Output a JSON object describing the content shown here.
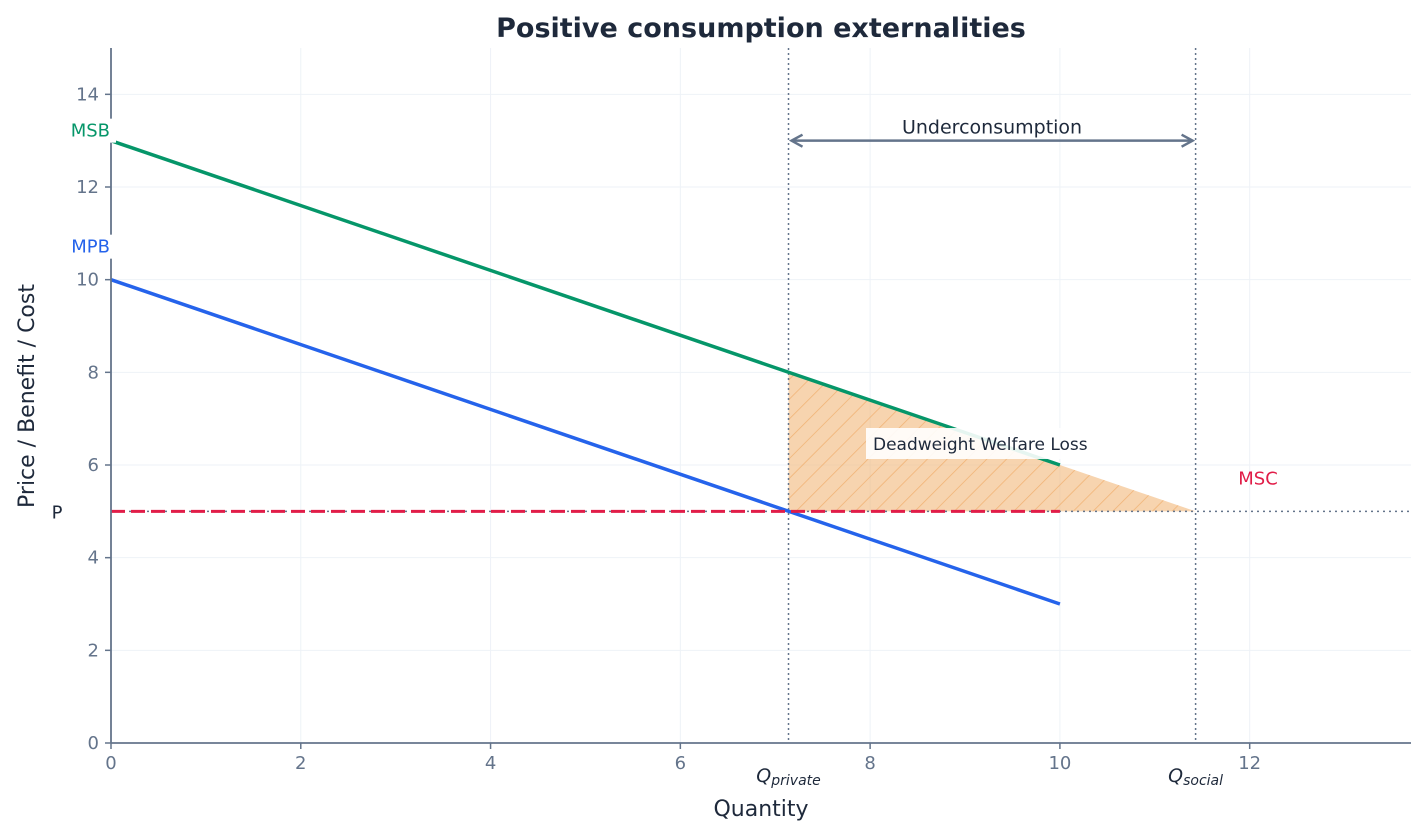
{
  "chart_data": {
    "type": "line",
    "title": "Positive consumption externalities",
    "xlabel": "Quantity",
    "ylabel": "Price / Benefit / Cost",
    "xlim": [
      0,
      13.7
    ],
    "ylim": [
      0,
      15
    ],
    "x_ticks": [
      0,
      2,
      4,
      6,
      8,
      10,
      12
    ],
    "y_ticks": [
      0,
      2,
      4,
      6,
      8,
      10,
      12,
      14
    ],
    "grid": true,
    "series": [
      {
        "name": "MSB",
        "color": "#059669",
        "x": [
          0,
          10
        ],
        "y": [
          13,
          6
        ],
        "style": "solid"
      },
      {
        "name": "MPB",
        "color": "#2563eb",
        "x": [
          0,
          10
        ],
        "y": [
          10,
          3
        ],
        "style": "solid"
      },
      {
        "name": "MSC",
        "color": "#e11d48",
        "x": [
          0,
          10
        ],
        "y": [
          5,
          5
        ],
        "style": "dashed"
      }
    ],
    "price_level": {
      "label": "P",
      "value": 5
    },
    "q_private": {
      "label": "Q",
      "sub": "private",
      "value": 7.14
    },
    "q_social": {
      "label": "Q",
      "sub": "social",
      "value": 11.43
    },
    "deadweight_loss": {
      "label": "Deadweight Welfare Loss",
      "color": "#f2b77a",
      "vertices": [
        [
          7.14,
          8
        ],
        [
          11.43,
          5
        ],
        [
          7.14,
          5
        ]
      ]
    },
    "underconsumption": {
      "label": "Underconsumption",
      "y": 13,
      "from": 7.14,
      "to": 11.43,
      "color": "#64748b"
    }
  }
}
